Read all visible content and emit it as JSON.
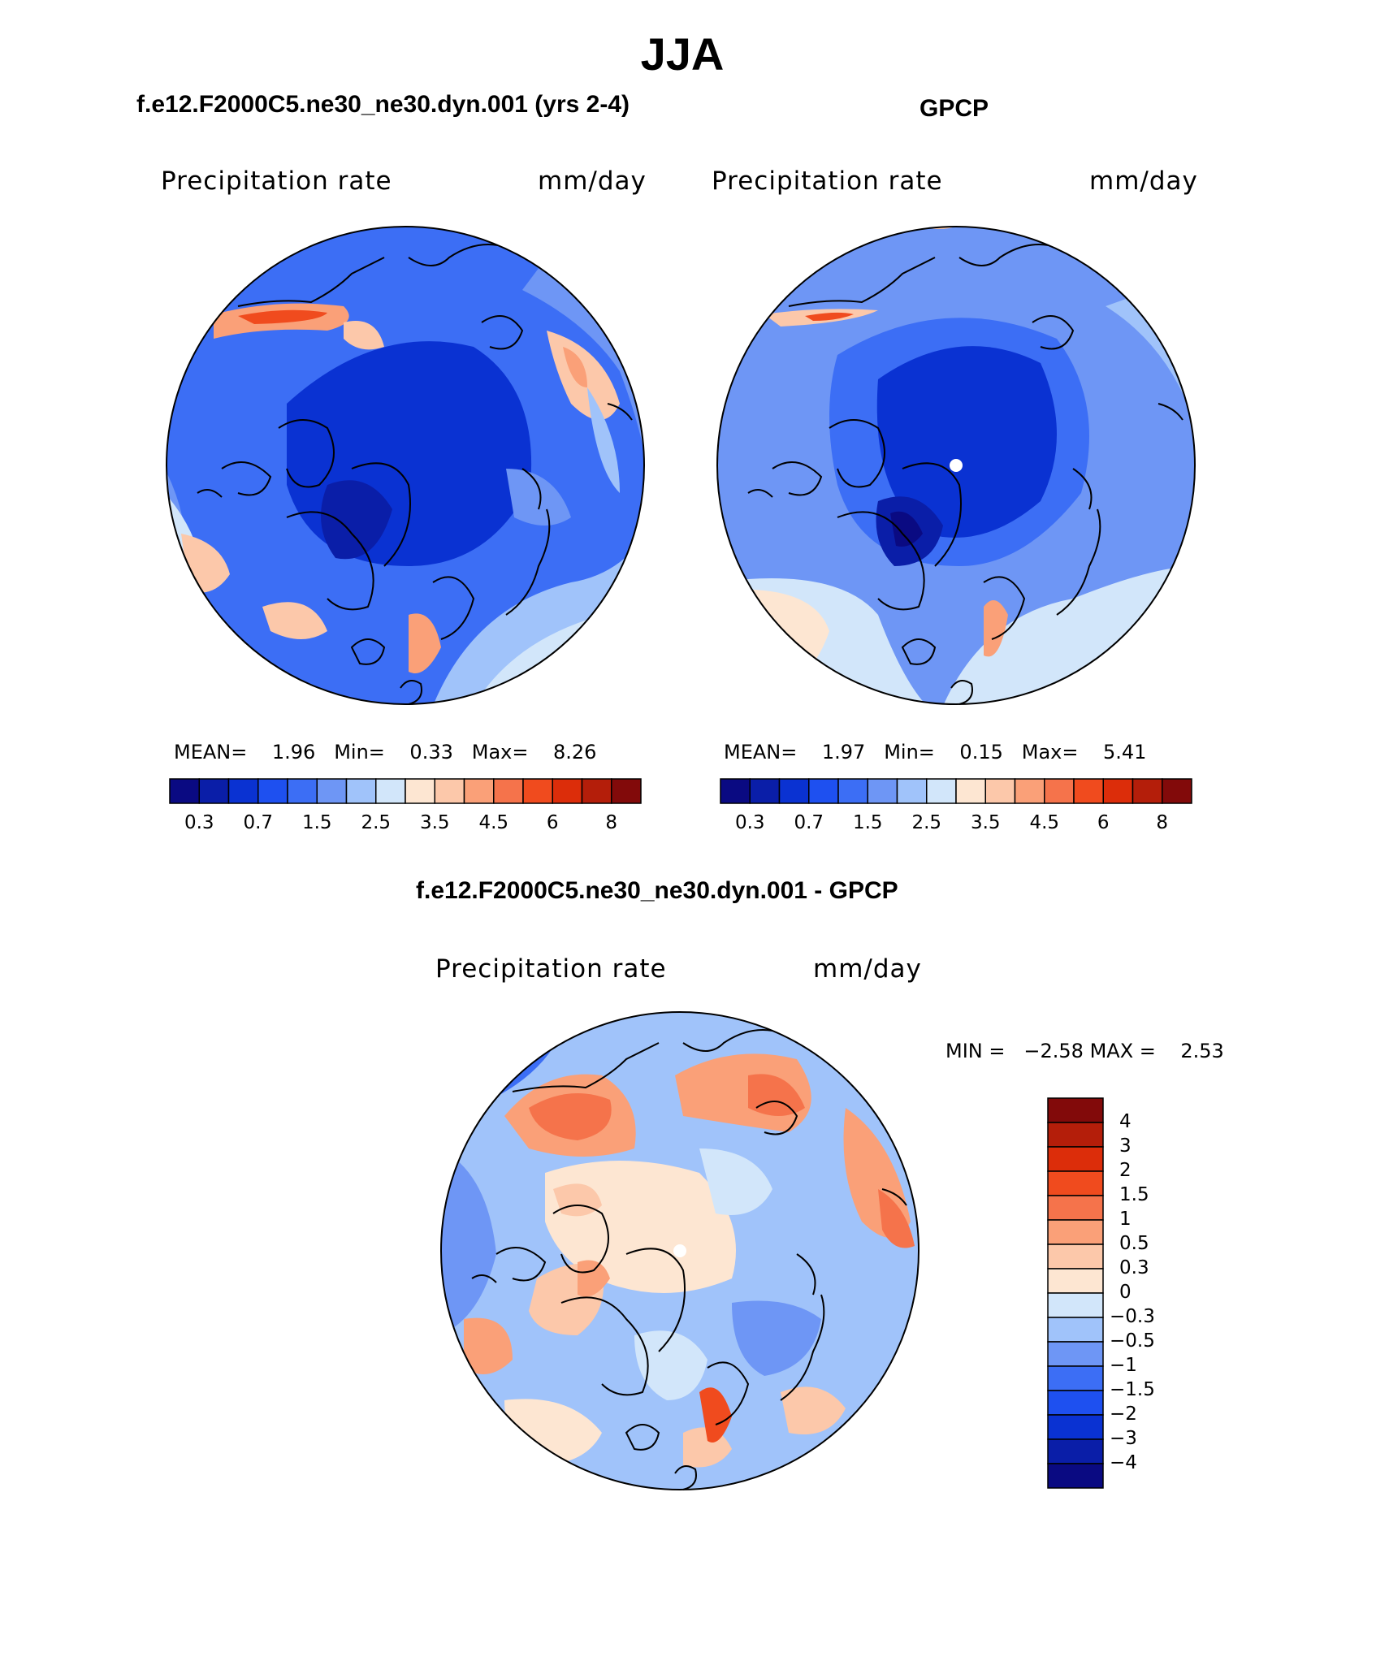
{
  "season": "JJA",
  "panels": [
    {
      "title": "f.e12.F2000C5.ne30_ne30.dyn.001 (yrs 2-4)",
      "left_label": "Precipitation rate",
      "right_label": "mm/day",
      "stats": {
        "mean_label": "MEAN=",
        "mean": "1.96",
        "min_label": "Min=",
        "min": "0.33",
        "max_label": "Max=",
        "max": "8.26"
      }
    },
    {
      "title": "GPCP",
      "left_label": "Precipitation rate",
      "right_label": "mm/day",
      "stats": {
        "mean_label": "MEAN=",
        "mean": "1.97",
        "min_label": "Min=",
        "min": "0.15",
        "max_label": "Max=",
        "max": "5.41"
      }
    },
    {
      "title": "f.e12.F2000C5.ne30_ne30.dyn.001 - GPCP",
      "left_label": "Precipitation rate",
      "right_label": "mm/day",
      "stats": {
        "min_label": "MIN =",
        "min": "−2.58",
        "max_label": "MAX =",
        "max": "2.53"
      }
    }
  ],
  "colorbar_abs": {
    "colors": [
      "#0a0a82",
      "#0a1ea8",
      "#0a32d2",
      "#1e50f0",
      "#3c6ef5",
      "#6e96f5",
      "#a0c3fa",
      "#d2e6fa",
      "#fde6d2",
      "#fcc8aa",
      "#faa078",
      "#f5734b",
      "#f04b1e",
      "#dc2d0a",
      "#b41e0a",
      "#820a0a"
    ],
    "tick_labels": [
      "0.3",
      "0.7",
      "1.5",
      "2.5",
      "3.5",
      "4.5",
      "6",
      "8"
    ]
  },
  "colorbar_diff": {
    "colors": [
      "#0a0a82",
      "#0a1ea8",
      "#0a32d2",
      "#1e50f0",
      "#3c6ef5",
      "#6e96f5",
      "#a0c3fa",
      "#d2e6fa",
      "#fde6d2",
      "#fcc8aa",
      "#faa078",
      "#f5734b",
      "#f04b1e",
      "#dc2d0a",
      "#b41e0a",
      "#820a0a"
    ],
    "tick_labels": [
      "4",
      "3",
      "2",
      "1.5",
      "1",
      "0.5",
      "0.3",
      "0",
      "−0.3",
      "−0.5",
      "−1",
      "−1.5",
      "−2",
      "−3",
      "−4"
    ]
  },
  "map_colors": {
    "deep": "#0a32d2",
    "mid": "#3c6ef5",
    "light": "#6e96f5",
    "pale": "#a0c3fa",
    "faint": "#d2e6fa",
    "cream": "#fde6d2",
    "peach": "#fcc8aa",
    "salmon": "#faa078",
    "orange": "#f5734b",
    "red": "#f04b1e"
  }
}
